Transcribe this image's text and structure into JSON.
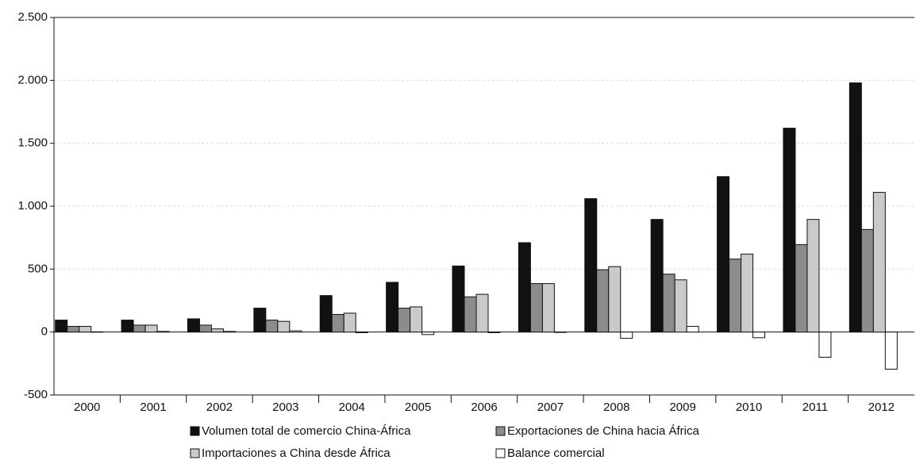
{
  "chart_data": {
    "type": "bar",
    "categories": [
      "2000",
      "2001",
      "2002",
      "2003",
      "2004",
      "2005",
      "2006",
      "2007",
      "2008",
      "2009",
      "2010",
      "2011",
      "2012"
    ],
    "series": [
      {
        "name": "Volumen total de comercio China-África",
        "color": "#111111",
        "values": [
          95,
          95,
          105,
          190,
          290,
          395,
          525,
          710,
          1060,
          895,
          1235,
          1620,
          1980
        ]
      },
      {
        "name": "Exportaciones de China hacia África",
        "color": "#8c8c8c",
        "values": [
          45,
          55,
          55,
          95,
          140,
          190,
          280,
          385,
          495,
          460,
          580,
          695,
          815
        ]
      },
      {
        "name": "Importaciones a China desde África",
        "color": "#cacaca",
        "values": [
          45,
          55,
          25,
          85,
          150,
          200,
          300,
          385,
          520,
          415,
          620,
          895,
          1110
        ]
      },
      {
        "name": "Balance comercial",
        "color": "#ffffff",
        "values": [
          2,
          5,
          5,
          10,
          -5,
          -20,
          -5,
          0,
          -50,
          45,
          -45,
          -200,
          -295
        ]
      }
    ],
    "ylim": [
      -500,
      2500
    ],
    "yticks": [
      -500,
      0,
      500,
      {
        "value": 1000,
        "label": "1.000"
      },
      {
        "value": 1500,
        "label": "1.500"
      },
      {
        "value": 2000,
        "label": "2.000"
      },
      {
        "value": 2500,
        "label": "2.500"
      }
    ],
    "grid": true
  }
}
